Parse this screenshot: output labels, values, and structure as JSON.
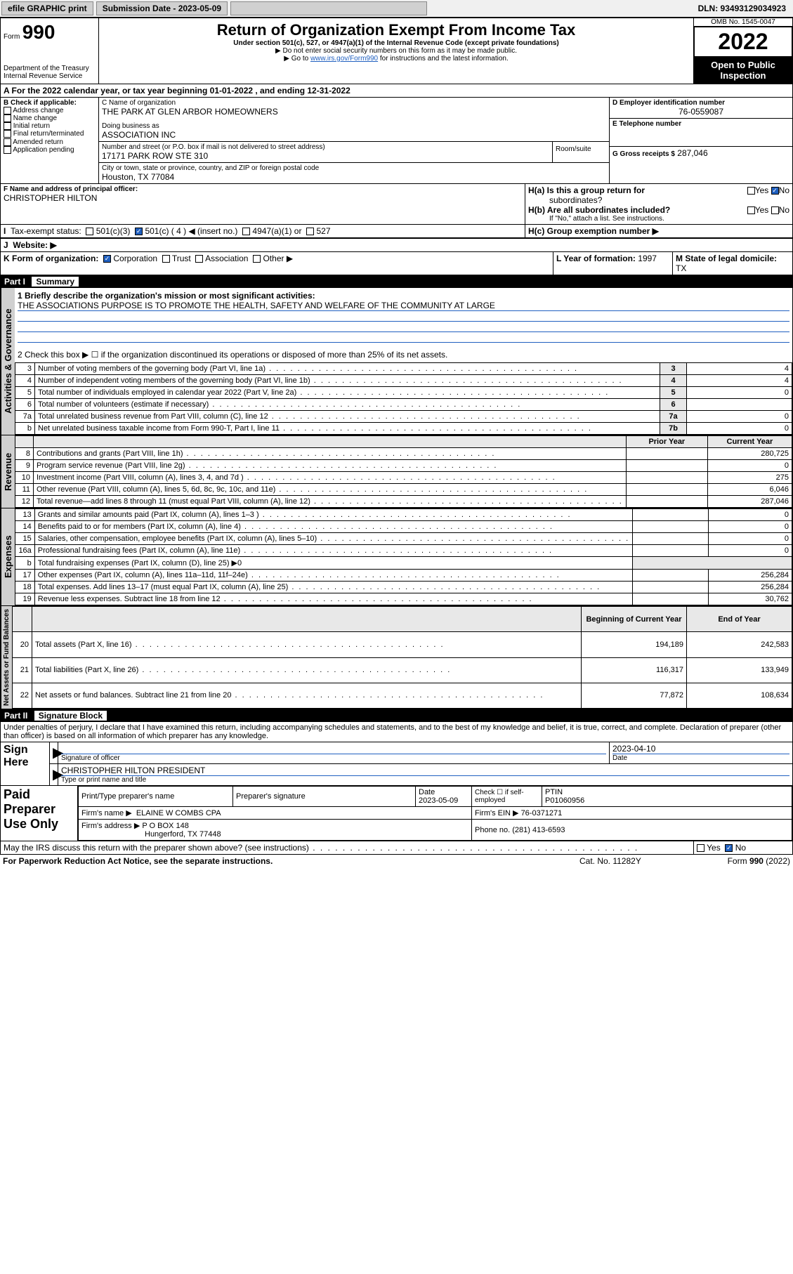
{
  "topbar": {
    "efile": "efile GRAPHIC print",
    "submission_label": "Submission Date - 2023-05-09",
    "dln": "DLN: 93493129034923"
  },
  "header": {
    "form_label": "Form",
    "form_number": "990",
    "dept": "Department of the Treasury",
    "irs": "Internal Revenue Service",
    "title": "Return of Organization Exempt From Income Tax",
    "subtitle": "Under section 501(c), 527, or 4947(a)(1) of the Internal Revenue Code (except private foundations)",
    "note1": "▶ Do not enter social security numbers on this form as it may be made public.",
    "note2_pre": "▶ Go to ",
    "note2_link": "www.irs.gov/Form990",
    "note2_post": " for instructions and the latest information.",
    "omb": "OMB No. 1545-0047",
    "year": "2022",
    "open": "Open to Public Inspection"
  },
  "section_a": {
    "line_a": "A For the 2022 calendar year, or tax year beginning 01-01-2022    , and ending 12-31-2022",
    "b_label": "B Check if applicable:",
    "b_items": [
      "Address change",
      "Name change",
      "Initial return",
      "Final return/terminated",
      "Amended return",
      "Application pending"
    ],
    "c_label": "C Name of organization",
    "c_name": "THE PARK AT GLEN ARBOR HOMEOWNERS",
    "dba_label": "Doing business as",
    "dba": "ASSOCIATION INC",
    "addr_label": "Number and street (or P.O. box if mail is not delivered to street address)",
    "room_label": "Room/suite",
    "addr": "17171 PARK ROW STE 310",
    "city_label": "City or town, state or province, country, and ZIP or foreign postal code",
    "city": "Houston, TX  77084",
    "d_label": "D Employer identification number",
    "d_ein": "76-0559087",
    "e_label": "E Telephone number",
    "g_label": "G Gross receipts $",
    "g_val": "287,046",
    "f_label": "F Name and address of principal officer:",
    "f_name": "CHRISTOPHER HILTON",
    "ha_label": "H(a)  Is this a group return for",
    "ha_sub": "subordinates?",
    "hb_label": "H(b)  Are all subordinates included?",
    "hb_note": "If \"No,\" attach a list. See instructions.",
    "hc_label": "H(c)  Group exemption number ▶",
    "yes": "Yes",
    "no": "No",
    "i_label": "Tax-exempt status:",
    "i_insert": "◀ (insert no.)",
    "i_501c3": "501(c)(3)",
    "i_501c": "501(c) ( 4 )",
    "i_4947": "4947(a)(1) or",
    "i_527": "527",
    "j_label": "Website: ▶",
    "k_label": "K Form of organization:",
    "k_items": [
      "Corporation",
      "Trust",
      "Association",
      "Other ▶"
    ],
    "l_label": "L Year of formation:",
    "l_val": "1997",
    "m_label": "M State of legal domicile:",
    "m_val": "TX"
  },
  "part1": {
    "hdr": "Part I",
    "sub": "Summary",
    "l1a": "1  Briefly describe the organization's mission or most significant activities:",
    "l1b": "THE ASSOCIATIONS PURPOSE IS TO PROMOTE THE HEALTH, SAFETY AND WELFARE OF THE COMMUNITY AT LARGE",
    "l2": "2  Check this box ▶ ☐  if the organization discontinued its operations or disposed of more than 25% of its net assets.",
    "rows_gov": [
      {
        "n": "3",
        "t": "Number of voting members of the governing body (Part VI, line 1a)",
        "r": "3",
        "v": "4"
      },
      {
        "n": "4",
        "t": "Number of independent voting members of the governing body (Part VI, line 1b)",
        "r": "4",
        "v": "4"
      },
      {
        "n": "5",
        "t": "Total number of individuals employed in calendar year 2022 (Part V, line 2a)",
        "r": "5",
        "v": "0"
      },
      {
        "n": "6",
        "t": "Total number of volunteers (estimate if necessary)",
        "r": "6",
        "v": ""
      },
      {
        "n": "7a",
        "t": "Total unrelated business revenue from Part VIII, column (C), line 12",
        "r": "7a",
        "v": "0"
      },
      {
        "n": "b",
        "t": "Net unrelated business taxable income from Form 990-T, Part I, line 11",
        "r": "7b",
        "v": "0"
      }
    ],
    "col_py": "Prior Year",
    "col_cy": "Current Year",
    "rows_rev": [
      {
        "n": "8",
        "t": "Contributions and grants (Part VIII, line 1h)",
        "py": "",
        "cy": "280,725"
      },
      {
        "n": "9",
        "t": "Program service revenue (Part VIII, line 2g)",
        "py": "",
        "cy": "0"
      },
      {
        "n": "10",
        "t": "Investment income (Part VIII, column (A), lines 3, 4, and 7d )",
        "py": "",
        "cy": "275"
      },
      {
        "n": "11",
        "t": "Other revenue (Part VIII, column (A), lines 5, 6d, 8c, 9c, 10c, and 11e)",
        "py": "",
        "cy": "6,046"
      },
      {
        "n": "12",
        "t": "Total revenue—add lines 8 through 11 (must equal Part VIII, column (A), line 12)",
        "py": "",
        "cy": "287,046"
      }
    ],
    "rows_exp": [
      {
        "n": "13",
        "t": "Grants and similar amounts paid (Part IX, column (A), lines 1–3 )",
        "py": "",
        "cy": "0"
      },
      {
        "n": "14",
        "t": "Benefits paid to or for members (Part IX, column (A), line 4)",
        "py": "",
        "cy": "0"
      },
      {
        "n": "15",
        "t": "Salaries, other compensation, employee benefits (Part IX, column (A), lines 5–10)",
        "py": "",
        "cy": "0"
      },
      {
        "n": "16a",
        "t": "Professional fundraising fees (Part IX, column (A), line 11e)",
        "py": "",
        "cy": "0"
      },
      {
        "n": "b",
        "t": "Total fundraising expenses (Part IX, column (D), line 25) ▶0",
        "py": "—",
        "cy": "—"
      },
      {
        "n": "17",
        "t": "Other expenses (Part IX, column (A), lines 11a–11d, 11f–24e)",
        "py": "",
        "cy": "256,284"
      },
      {
        "n": "18",
        "t": "Total expenses. Add lines 13–17 (must equal Part IX, column (A), line 25)",
        "py": "",
        "cy": "256,284"
      },
      {
        "n": "19",
        "t": "Revenue less expenses. Subtract line 18 from line 12",
        "py": "",
        "cy": "30,762"
      }
    ],
    "col_bcy": "Beginning of Current Year",
    "col_eoy": "End of Year",
    "rows_net": [
      {
        "n": "20",
        "t": "Total assets (Part X, line 16)",
        "b": "194,189",
        "e": "242,583"
      },
      {
        "n": "21",
        "t": "Total liabilities (Part X, line 26)",
        "b": "116,317",
        "e": "133,949"
      },
      {
        "n": "22",
        "t": "Net assets or fund balances. Subtract line 21 from line 20",
        "b": "77,872",
        "e": "108,634"
      }
    ],
    "tab_gov": "Activities & Governance",
    "tab_rev": "Revenue",
    "tab_exp": "Expenses",
    "tab_net": "Net Assets or Fund Balances"
  },
  "part2": {
    "hdr": "Part II",
    "sub": "Signature Block",
    "decl": "Under penalties of perjury, I declare that I have examined this return, including accompanying schedules and statements, and to the best of my knowledge and belief, it is true, correct, and complete. Declaration of preparer (other than officer) is based on all information of which preparer has any knowledge.",
    "sign_here": "Sign Here",
    "sig_officer": "Signature of officer",
    "sig_date": "Date",
    "sig_date_val": "2023-04-10",
    "sig_name_title": "CHRISTOPHER HILTON PRESIDENT",
    "sig_name_label": "Type or print name and title",
    "paid": "Paid Preparer Use Only",
    "pp_name_label": "Print/Type preparer's name",
    "pp_sig_label": "Preparer's signature",
    "pp_date_label": "Date",
    "pp_date": "2023-05-09",
    "pp_check_label": "Check ☐ if self-employed",
    "pp_ptin_label": "PTIN",
    "pp_ptin": "P01060956",
    "pp_firm_label": "Firm's name  ▶",
    "pp_firm": "ELAINE W COMBS CPA",
    "pp_ein_label": "Firm's EIN ▶",
    "pp_ein": "76-0371271",
    "pp_addr_label": "Firm's address ▶",
    "pp_addr1": "P O BOX 148",
    "pp_addr2": "Hungerford, TX  77448",
    "pp_phone_label": "Phone no.",
    "pp_phone": "(281) 413-6593",
    "may_irs": "May the IRS discuss this return with the preparer shown above? (see instructions)"
  },
  "footer": {
    "pra": "For Paperwork Reduction Act Notice, see the separate instructions.",
    "cat": "Cat. No. 11282Y",
    "form": "Form 990 (2022)"
  }
}
